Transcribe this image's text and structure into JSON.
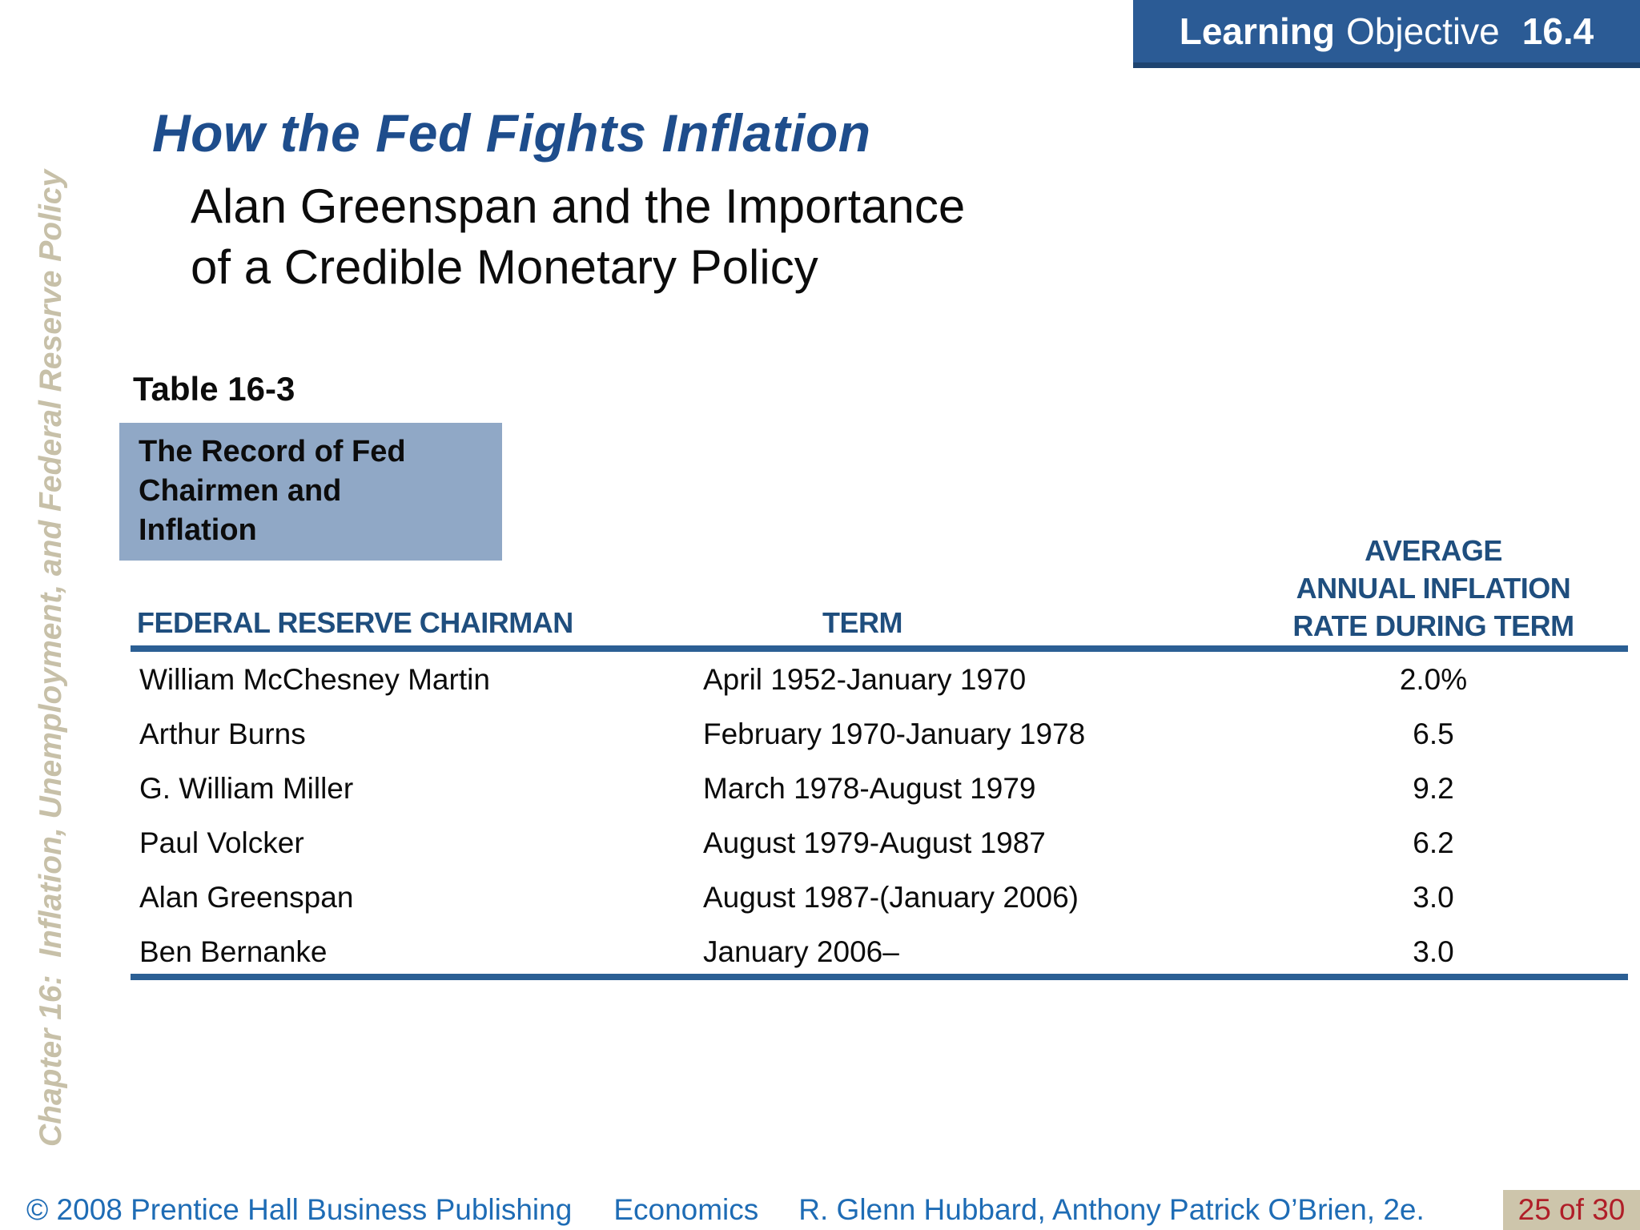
{
  "banner": {
    "word_bold": "Learning",
    "word_regular": "Objective",
    "number": "16.4"
  },
  "sidebar": {
    "text": "Chapter 16:  Inflation, Unemployment, and Federal Reserve Policy"
  },
  "title": "How the Fed Fights Inflation",
  "subtitle": "Alan Greenspan and the Importance\nof a Credible Monetary Policy",
  "table": {
    "label": "Table 16-3",
    "caption": "The Record of Fed\nChairmen and\nInflation",
    "col1": "FEDERAL RESERVE CHAIRMAN",
    "col2": "TERM",
    "col3": "AVERAGE\nANNUAL INFLATION\nRATE DURING TERM",
    "rows": [
      {
        "chairman": "William McChesney Martin",
        "term": "April 1952-January 1970",
        "rate": "2.0%"
      },
      {
        "chairman": "Arthur Burns",
        "term": "February 1970-January 1978",
        "rate": "6.5"
      },
      {
        "chairman": "G. William Miller",
        "term": "March 1978-August 1979",
        "rate": "9.2"
      },
      {
        "chairman": "Paul Volcker",
        "term": "August 1979-August 1987",
        "rate": "6.2"
      },
      {
        "chairman": "Alan Greenspan",
        "term": "August 1987-(January 2006)",
        "rate": "3.0"
      },
      {
        "chairman": "Ben Bernanke",
        "term": "January 2006–",
        "rate": "3.0"
      }
    ]
  },
  "footer": {
    "copyright": "© 2008 Prentice Hall Business Publishing",
    "book": "Economics",
    "authors": "R. Glenn Hubbard, Anthony Patrick O’Brien, 2e.",
    "page": "25 of 30"
  },
  "colors": {
    "banner_blue": "#2B5B95",
    "banner_border": "#1E4470",
    "title_blue": "#1E4D8C",
    "header_blue": "#1F4E7E",
    "rule_blue": "#2B5F94",
    "caption_box_blue": "#90A8C6",
    "footer_blue": "#1E6CB5",
    "sidebar_tan": "#C7C0A8",
    "page_box_tan": "#CDC5AB",
    "page_number_red": "#B01E28"
  }
}
